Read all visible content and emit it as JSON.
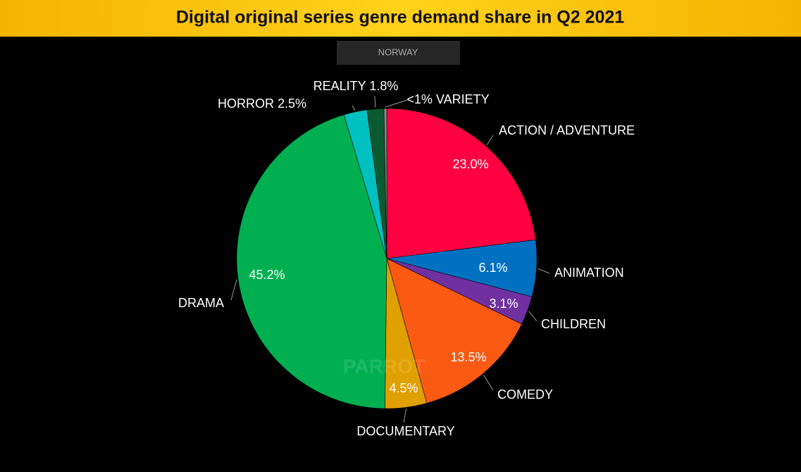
{
  "chart_data": {
    "type": "pie",
    "title": "Digital original series genre demand share in Q2 2021",
    "subtitle": "NORWAY",
    "watermark": "PARROT",
    "categories": [
      "ACTION / ADVENTURE",
      "ANIMATION",
      "CHILDREN",
      "COMEDY",
      "DOCUMENTARY",
      "DRAMA",
      "HORROR",
      "REALITY",
      "VARIETY"
    ],
    "values": [
      23.0,
      6.1,
      3.1,
      13.5,
      4.5,
      45.2,
      2.5,
      1.8,
      0.3
    ],
    "value_labels": [
      "23.0%",
      "6.1%",
      "3.1%",
      "13.5%",
      "4.5%",
      "45.2%",
      "2.5%",
      "1.8%",
      "<1%"
    ],
    "colors": [
      "#ff0040",
      "#0070c0",
      "#7030a0",
      "#fa5a12",
      "#e0a000",
      "#00b050",
      "#00c0c0",
      "#0b5a30",
      "#8a8a8a"
    ]
  }
}
